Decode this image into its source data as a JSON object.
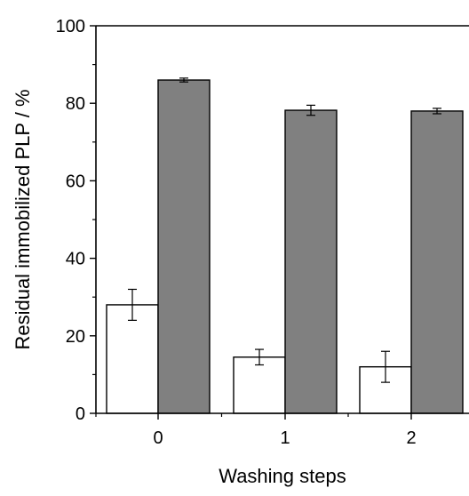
{
  "chart_data": {
    "type": "bar",
    "title": "",
    "xlabel": "Washing steps",
    "ylabel": "Residual immobilized PLP / %",
    "categories": [
      "0",
      "1",
      "2"
    ],
    "ylim": [
      0,
      100
    ],
    "yticks": [
      "0",
      "20",
      "40",
      "60",
      "80",
      "100"
    ],
    "grid": false,
    "legend": "none",
    "series": [
      {
        "color": "#ffffff",
        "values": [
          28,
          14.5,
          12
        ],
        "errors": [
          4,
          2,
          4
        ]
      },
      {
        "color": "#808080",
        "values": [
          86,
          78.2,
          78
        ],
        "errors": [
          0.5,
          1.3,
          0.7
        ]
      }
    ]
  }
}
